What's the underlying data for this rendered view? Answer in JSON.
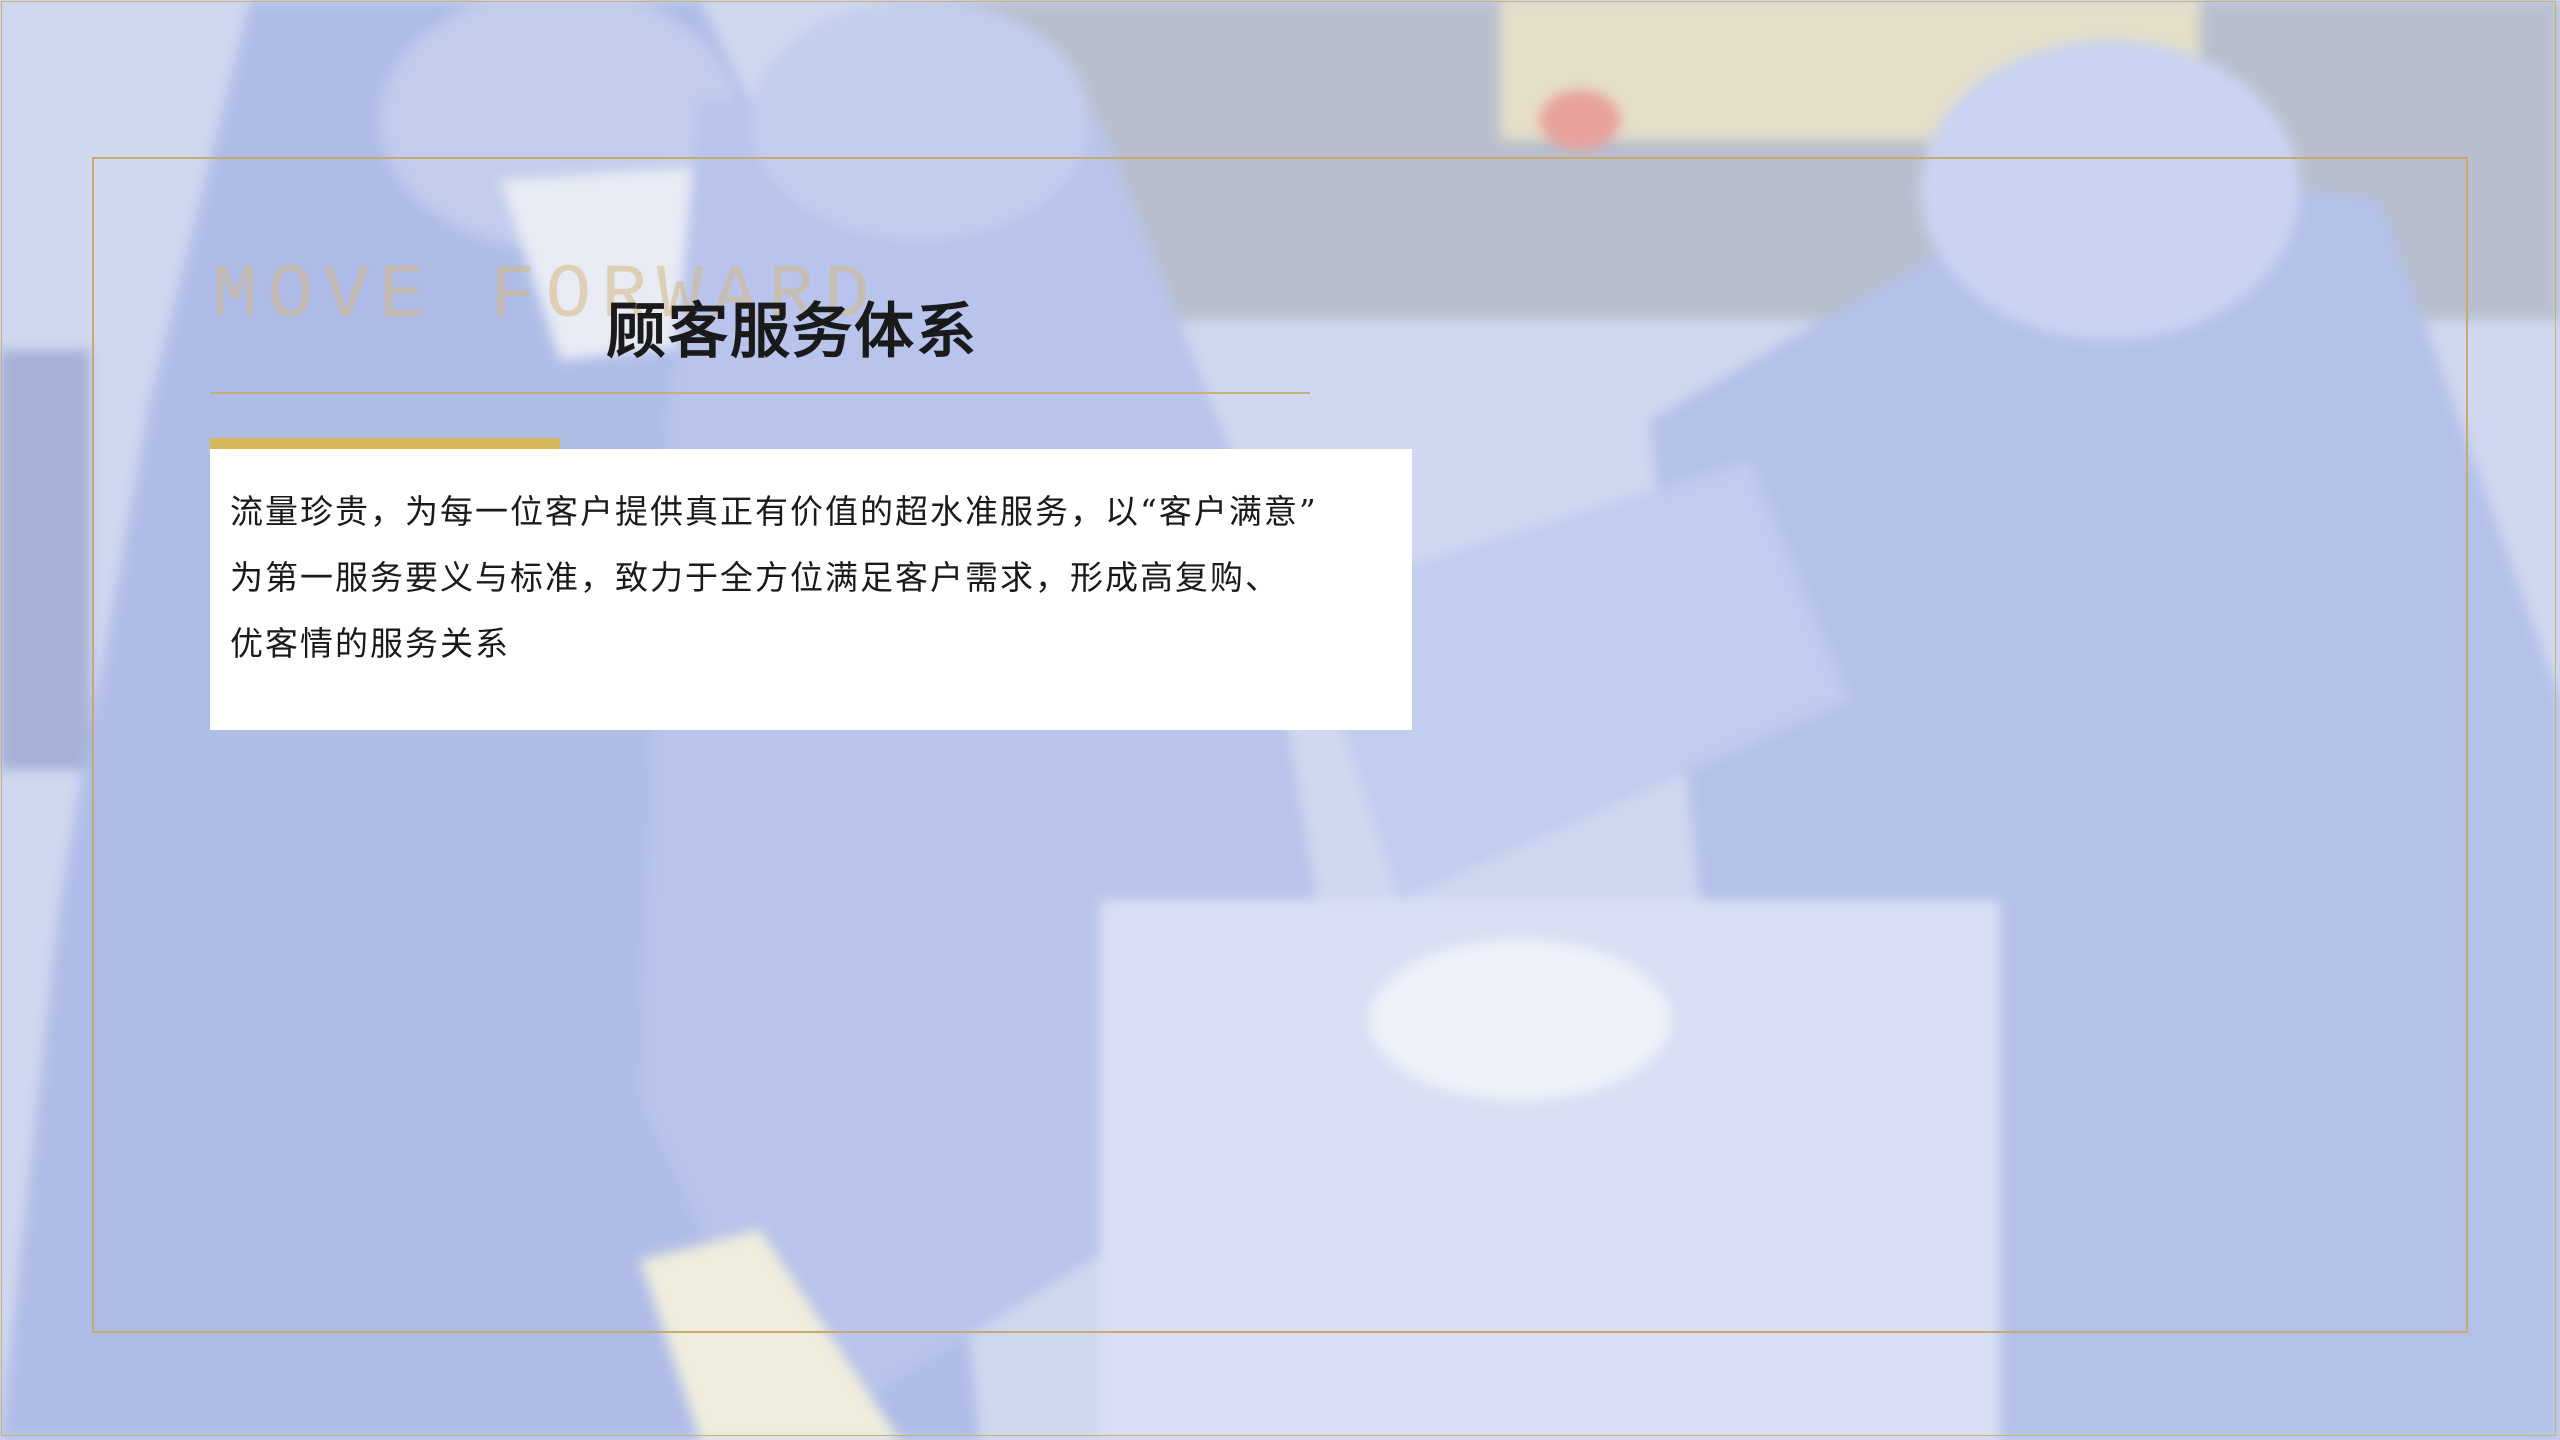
{
  "slide": {
    "watermark": "MOVE FORWARD",
    "title": "顾客服务体系",
    "body_lines": [
      "流量珍贵，为每一位客户提供真正有价值的超水准服务，以“客户满意”",
      "为第一服务要义与标准，致力于全方位满足客户需求，形成高复购、",
      "优客情的服务关系"
    ]
  },
  "colors": {
    "frame_gold": "#c9a96e",
    "accent_bar": "#d8b65a",
    "title_text": "#1a1a1a",
    "card_background": "#ffffff",
    "photo_tint": "#b8c4e6"
  }
}
